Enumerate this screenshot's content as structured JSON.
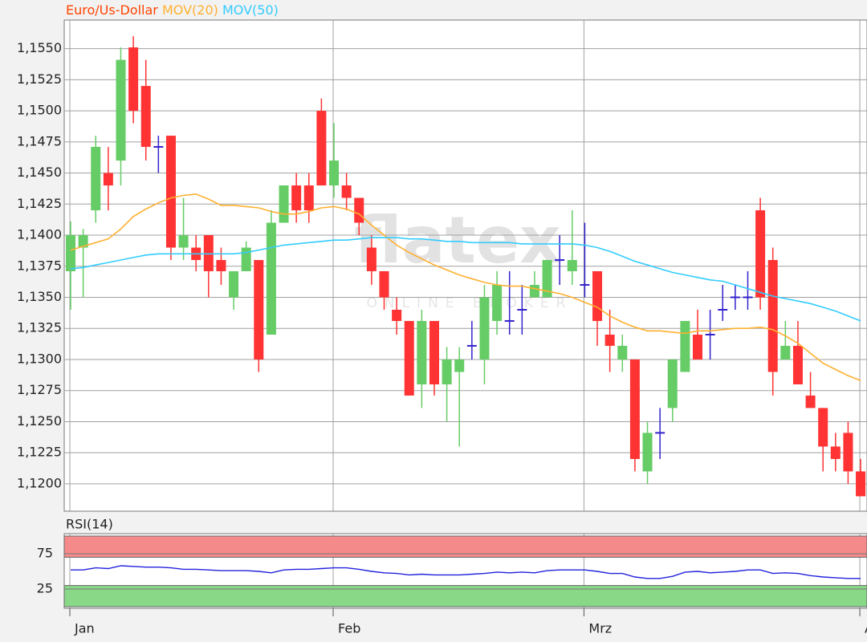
{
  "chart_data": {
    "type": "candlestick",
    "title": "Euro/Us-Dollar",
    "title_color": "#ff4400",
    "watermark": "flatex",
    "watermark_sub": "ONLINE BROKER",
    "categories": [
      "Jan",
      null,
      null,
      null,
      null,
      null,
      null,
      null,
      null,
      null,
      null,
      null,
      null,
      null,
      null,
      null,
      null,
      null,
      null,
      null,
      null,
      "Feb",
      null,
      null,
      null,
      null,
      null,
      null,
      null,
      null,
      null,
      null,
      null,
      null,
      null,
      null,
      null,
      null,
      null,
      null,
      null,
      "Mrz",
      null,
      null,
      null,
      null,
      null,
      null,
      null,
      null,
      null,
      null,
      null,
      null,
      null,
      null,
      null,
      null,
      null,
      null,
      null,
      null,
      null,
      "Apr"
    ],
    "open": [
      1.1371,
      1.139,
      1.142,
      1.145,
      1.146,
      1.1551,
      1.152,
      1.1471,
      1.148,
      1.139,
      1.139,
      1.14,
      1.138,
      1.135,
      1.1371,
      1.138,
      1.132,
      1.141,
      1.144,
      1.144,
      1.15,
      1.144,
      1.144,
      1.143,
      1.139,
      1.1371,
      1.134,
      1.1331,
      1.128,
      1.1331,
      1.128,
      1.129,
      1.1311,
      1.13,
      1.1331,
      1.1331,
      1.134,
      1.135,
      1.135,
      1.138,
      1.1371,
      1.136,
      1.1371,
      1.132,
      1.13,
      1.13,
      1.121,
      1.1241,
      1.1261,
      1.129,
      1.132,
      1.132,
      1.134,
      1.135,
      1.135,
      1.142,
      1.138,
      1.13,
      1.1311,
      1.1271,
      1.1261,
      1.123,
      1.1241,
      1.121
    ],
    "high": [
      1.1411,
      1.1405,
      1.148,
      1.1471,
      1.1551,
      1.156,
      1.1541,
      1.148,
      1.148,
      1.143,
      1.14,
      1.14,
      1.139,
      1.1371,
      1.1395,
      1.138,
      1.142,
      1.144,
      1.145,
      1.145,
      1.151,
      1.149,
      1.145,
      1.143,
      1.14,
      1.1371,
      1.135,
      1.1331,
      1.134,
      1.1331,
      1.131,
      1.131,
      1.1331,
      1.136,
      1.1371,
      1.1371,
      1.136,
      1.1371,
      1.138,
      1.14,
      1.142,
      1.141,
      1.1371,
      1.134,
      1.132,
      1.13,
      1.125,
      1.1261,
      1.13,
      1.1331,
      1.134,
      1.134,
      1.136,
      1.136,
      1.1371,
      1.143,
      1.139,
      1.1331,
      1.1331,
      1.129,
      1.1261,
      1.1241,
      1.125,
      1.122
    ],
    "low": [
      1.134,
      1.135,
      1.141,
      1.142,
      1.144,
      1.149,
      1.146,
      1.145,
      1.138,
      1.138,
      1.1371,
      1.135,
      1.136,
      1.134,
      1.1371,
      1.129,
      1.132,
      1.141,
      1.141,
      1.141,
      1.144,
      1.143,
      1.142,
      1.14,
      1.136,
      1.134,
      1.132,
      1.1271,
      1.1261,
      1.1271,
      1.125,
      1.123,
      1.13,
      1.128,
      1.132,
      1.132,
      1.132,
      1.135,
      1.135,
      1.136,
      1.136,
      1.135,
      1.1311,
      1.129,
      1.129,
      1.121,
      1.12,
      1.122,
      1.125,
      1.129,
      1.13,
      1.13,
      1.1331,
      1.134,
      1.134,
      1.134,
      1.1271,
      1.13,
      1.128,
      1.1261,
      1.121,
      1.121,
      1.12,
      1.119
    ],
    "close": [
      1.14,
      1.14,
      1.1471,
      1.144,
      1.1541,
      1.15,
      1.1471,
      1.1471,
      1.139,
      1.14,
      1.138,
      1.1371,
      1.1371,
      1.1371,
      1.139,
      1.13,
      1.141,
      1.144,
      1.142,
      1.142,
      1.144,
      1.146,
      1.143,
      1.141,
      1.1371,
      1.135,
      1.1331,
      1.1271,
      1.1331,
      1.128,
      1.13,
      1.13,
      1.1311,
      1.135,
      1.136,
      1.1331,
      1.134,
      1.136,
      1.138,
      1.138,
      1.138,
      1.136,
      1.1331,
      1.1311,
      1.1311,
      1.122,
      1.1241,
      1.1241,
      1.13,
      1.1331,
      1.13,
      1.132,
      1.134,
      1.135,
      1.135,
      1.135,
      1.129,
      1.1311,
      1.128,
      1.1261,
      1.123,
      1.122,
      1.121,
      1.119
    ],
    "up_color": "#66cc66",
    "down_color": "#ff3333",
    "doji_color": "#3322cc",
    "series": [
      {
        "name": "MOV(20)",
        "color": "#ffb030",
        "values": [
          1.1388,
          1.1391,
          1.1394,
          1.1397,
          1.1405,
          1.1415,
          1.1421,
          1.1426,
          1.143,
          1.1432,
          1.1433,
          1.1429,
          1.1424,
          1.1424,
          1.1423,
          1.1422,
          1.1419,
          1.1417,
          1.1417,
          1.1419,
          1.1422,
          1.1423,
          1.1421,
          1.1417,
          1.1408,
          1.14,
          1.1392,
          1.1386,
          1.1381,
          1.1376,
          1.1372,
          1.1368,
          1.1365,
          1.1362,
          1.136,
          1.1359,
          1.1359,
          1.1357,
          1.1355,
          1.1353,
          1.135,
          1.1346,
          1.1342,
          1.1335,
          1.133,
          1.1326,
          1.1323,
          1.1323,
          1.1322,
          1.1321,
          1.1323,
          1.1323,
          1.1324,
          1.1325,
          1.1325,
          1.1326,
          1.1324,
          1.1319,
          1.1313,
          1.1305,
          1.1297,
          1.1292,
          1.1287,
          1.1283
        ]
      },
      {
        "name": "MOV(50)",
        "color": "#33ccff",
        "values": [
          1.1373,
          1.1374,
          1.1376,
          1.1378,
          1.138,
          1.1382,
          1.1384,
          1.1385,
          1.1385,
          1.1385,
          1.1385,
          1.1385,
          1.1385,
          1.1385,
          1.1386,
          1.1388,
          1.139,
          1.1392,
          1.1393,
          1.1394,
          1.1395,
          1.1396,
          1.1396,
          1.1397,
          1.1398,
          1.1398,
          1.1398,
          1.1397,
          1.1397,
          1.1396,
          1.1395,
          1.1395,
          1.1394,
          1.1394,
          1.1394,
          1.1394,
          1.1393,
          1.1393,
          1.1393,
          1.1393,
          1.1393,
          1.1392,
          1.139,
          1.1387,
          1.1383,
          1.1379,
          1.1376,
          1.1373,
          1.137,
          1.1368,
          1.1366,
          1.1364,
          1.1363,
          1.136,
          1.1357,
          1.1354,
          1.1351,
          1.1349,
          1.1347,
          1.1345,
          1.1342,
          1.1339,
          1.1335,
          1.1331
        ]
      }
    ],
    "ylim": [
      1.1178,
      1.1573
    ],
    "yticks": [
      {
        "value": 1.12,
        "label": "1,1200"
      },
      {
        "value": 1.1225,
        "label": "1,1225"
      },
      {
        "value": 1.125,
        "label": "1,1250"
      },
      {
        "value": 1.1275,
        "label": "1,1275"
      },
      {
        "value": 1.13,
        "label": "1,1300"
      },
      {
        "value": 1.1325,
        "label": "1,1325"
      },
      {
        "value": 1.135,
        "label": "1,1350"
      },
      {
        "value": 1.1375,
        "label": "1,1375"
      },
      {
        "value": 1.14,
        "label": "1,1400"
      },
      {
        "value": 1.1425,
        "label": "1,1425"
      },
      {
        "value": 1.145,
        "label": "1,1450"
      },
      {
        "value": 1.1475,
        "label": "1,1475"
      },
      {
        "value": 1.15,
        "label": "1,1500"
      },
      {
        "value": 1.1525,
        "label": "1,1525"
      },
      {
        "value": 1.155,
        "label": "1,1550"
      }
    ],
    "grid": true,
    "rsi": {
      "name": "RSI(14)",
      "color": "#2222dd",
      "values": [
        52,
        52,
        55,
        54,
        58,
        57,
        56,
        56,
        55,
        53,
        53,
        52,
        51,
        51,
        51,
        50,
        48,
        52,
        53,
        53,
        54,
        55,
        55,
        53,
        50,
        48,
        47,
        45,
        46,
        45,
        45,
        45,
        46,
        47,
        49,
        48,
        49,
        48,
        51,
        52,
        52,
        52,
        50,
        47,
        47,
        42,
        40,
        40,
        43,
        49,
        50,
        48,
        49,
        50,
        52,
        52,
        47,
        48,
        47,
        44,
        42,
        41,
        40,
        40
      ],
      "ylim": [
        0,
        100
      ],
      "yticks": [
        25,
        75
      ],
      "bands": [
        {
          "from": 70,
          "to": 100,
          "color": "#f58a8a"
        },
        {
          "from": 0,
          "to": 30,
          "color": "#88d888"
        }
      ]
    }
  }
}
